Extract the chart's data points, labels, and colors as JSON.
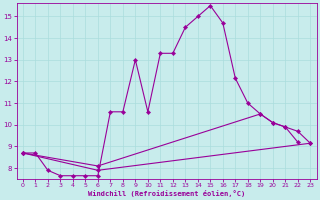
{
  "bg_color": "#c8ecec",
  "line_color": "#990099",
  "grid_color": "#aadddd",
  "xlabel": "Windchill (Refroidissement éolien,°C)",
  "xlabel_color": "#990099",
  "tick_color": "#990099",
  "ylim": [
    7.5,
    15.6
  ],
  "xlim": [
    -0.5,
    23.5
  ],
  "yticks": [
    8,
    9,
    10,
    11,
    12,
    13,
    14,
    15
  ],
  "xticks": [
    0,
    1,
    2,
    3,
    4,
    5,
    6,
    7,
    8,
    9,
    10,
    11,
    12,
    13,
    14,
    15,
    16,
    17,
    18,
    19,
    20,
    21,
    22,
    23
  ],
  "series1_x": [
    0,
    1,
    2,
    3,
    4,
    5,
    6,
    7,
    8,
    9,
    10,
    11,
    12,
    13,
    14,
    15,
    16,
    17,
    18,
    19,
    20,
    21,
    22
  ],
  "series1_y": [
    8.7,
    8.7,
    7.9,
    7.65,
    7.65,
    7.65,
    7.65,
    10.6,
    10.6,
    13.0,
    10.6,
    13.3,
    13.3,
    14.5,
    15.0,
    15.5,
    14.7,
    12.15,
    11.0,
    10.5,
    10.1,
    9.9,
    9.2
  ],
  "series2_x": [
    0,
    6,
    19,
    20,
    21,
    22,
    23
  ],
  "series2_y": [
    8.7,
    8.1,
    10.5,
    10.1,
    9.9,
    9.7,
    9.15
  ],
  "series3_x": [
    0,
    6,
    23
  ],
  "series3_y": [
    8.7,
    7.9,
    9.15
  ],
  "figsize": [
    3.2,
    2.0
  ],
  "dpi": 100
}
